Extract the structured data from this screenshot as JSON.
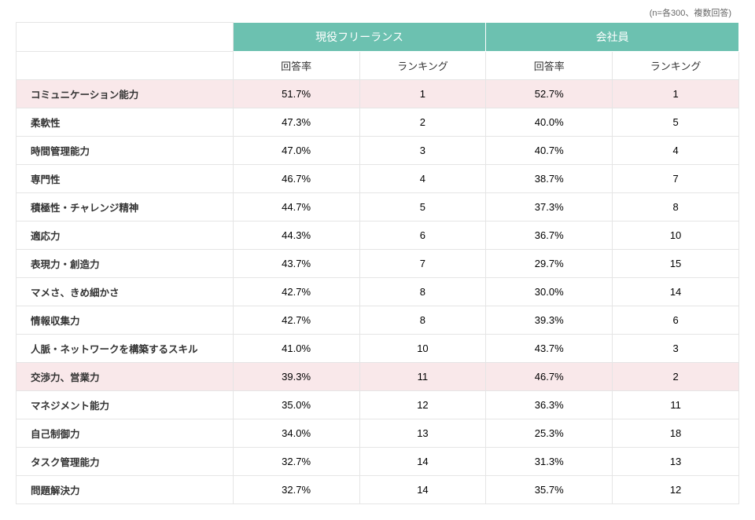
{
  "note": "(n=各300、複数回答)",
  "header": {
    "group1": "現役フリーランス",
    "group2": "会社員",
    "sub_rate": "回答率",
    "sub_rank": "ランキング"
  },
  "colors": {
    "header_bg": "#6cc1b0",
    "header_fg": "#ffffff",
    "border": "#e5e5e5",
    "highlight_bg": "#f9e8ea",
    "text": "#333333",
    "note_text": "#666666",
    "bg": "#ffffff"
  },
  "highlight_rows": [
    0,
    10
  ],
  "columns": [
    "label",
    "rate1",
    "rank1",
    "rate2",
    "rank2"
  ],
  "rows": [
    {
      "label": "コミュニケーション能力",
      "rate1": "51.7%",
      "rank1": "1",
      "rate2": "52.7%",
      "rank2": "1"
    },
    {
      "label": "柔軟性",
      "rate1": "47.3%",
      "rank1": "2",
      "rate2": "40.0%",
      "rank2": "5"
    },
    {
      "label": "時間管理能力",
      "rate1": "47.0%",
      "rank1": "3",
      "rate2": "40.7%",
      "rank2": "4"
    },
    {
      "label": "専門性",
      "rate1": "46.7%",
      "rank1": "4",
      "rate2": "38.7%",
      "rank2": "7"
    },
    {
      "label": "積極性・チャレンジ精神",
      "rate1": "44.7%",
      "rank1": "5",
      "rate2": "37.3%",
      "rank2": "8"
    },
    {
      "label": "適応力",
      "rate1": "44.3%",
      "rank1": "6",
      "rate2": "36.7%",
      "rank2": "10"
    },
    {
      "label": "表現力・創造力",
      "rate1": "43.7%",
      "rank1": "7",
      "rate2": "29.7%",
      "rank2": "15"
    },
    {
      "label": "マメさ、きめ細かさ",
      "rate1": "42.7%",
      "rank1": "8",
      "rate2": "30.0%",
      "rank2": "14"
    },
    {
      "label": "情報収集力",
      "rate1": "42.7%",
      "rank1": "8",
      "rate2": "39.3%",
      "rank2": "6"
    },
    {
      "label": "人脈・ネットワークを構築するスキル",
      "rate1": "41.0%",
      "rank1": "10",
      "rate2": "43.7%",
      "rank2": "3"
    },
    {
      "label": "交渉力、営業力",
      "rate1": "39.3%",
      "rank1": "11",
      "rate2": "46.7%",
      "rank2": "2"
    },
    {
      "label": "マネジメント能力",
      "rate1": "35.0%",
      "rank1": "12",
      "rate2": "36.3%",
      "rank2": "11"
    },
    {
      "label": "自己制御力",
      "rate1": "34.0%",
      "rank1": "13",
      "rate2": "25.3%",
      "rank2": "18"
    },
    {
      "label": "タスク管理能力",
      "rate1": "32.7%",
      "rank1": "14",
      "rate2": "31.3%",
      "rank2": "13"
    },
    {
      "label": "問題解決力",
      "rate1": "32.7%",
      "rank1": "14",
      "rate2": "35.7%",
      "rank2": "12"
    }
  ]
}
